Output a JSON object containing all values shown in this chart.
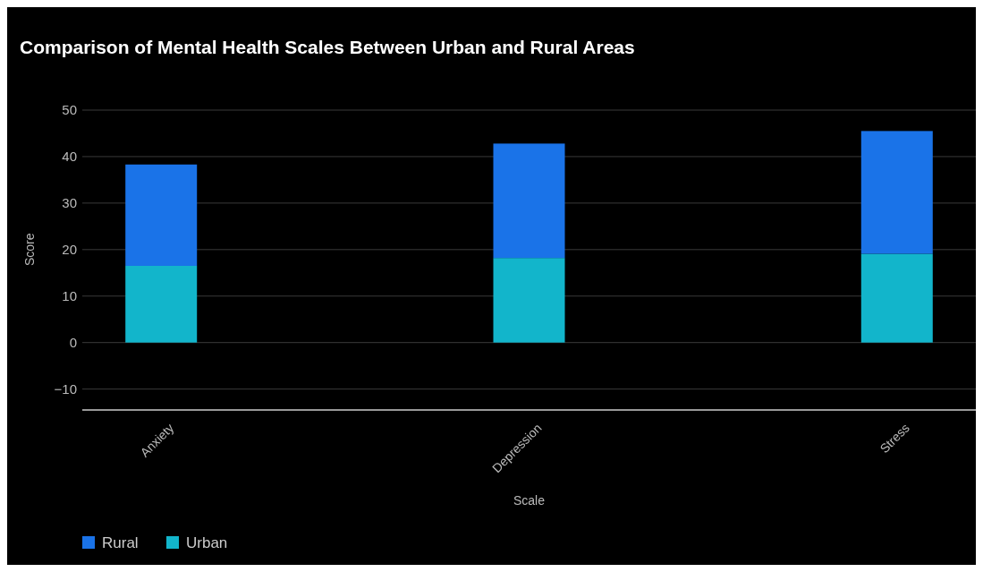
{
  "chart_data": {
    "type": "bar",
    "title": "Comparison of Mental Health Scales Between Urban and Rural Areas",
    "xlabel": "Scale",
    "ylabel": "Score",
    "categories": [
      "Anxiety",
      "Depression",
      "Stress"
    ],
    "stacked": true,
    "series": [
      {
        "name": "Urban",
        "color": "#12b5cb",
        "values": [
          16.5,
          18.2,
          19.1
        ]
      },
      {
        "name": "Rural",
        "color": "#1a73e8",
        "values": [
          21.8,
          24.6,
          26.4
        ]
      }
    ],
    "ylim": [
      -14.5,
      50
    ],
    "yticks": [
      -10,
      0,
      10,
      20,
      30,
      40,
      50
    ],
    "grid": "y",
    "legend": "bottom left"
  }
}
